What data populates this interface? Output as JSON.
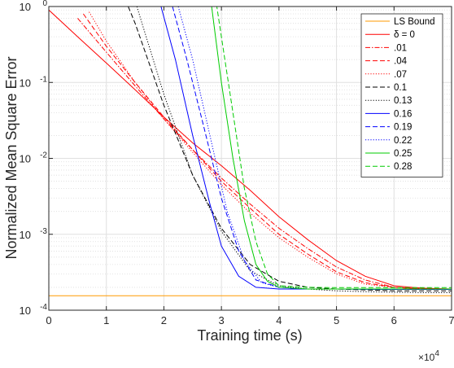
{
  "chart_data": {
    "type": "line",
    "xlabel": "Training time (s)",
    "ylabel": "Normalized Mean Square Error",
    "x_unit": "s",
    "x_multiplier_label": "×10",
    "x_multiplier_exponent": "4",
    "xlim": [
      0,
      70000
    ],
    "ylim": [
      0.0001,
      1
    ],
    "y_scale": "log",
    "grid": true,
    "legend_placement": "top-right",
    "x_ticks": [
      {
        "value": 0,
        "label": "0"
      },
      {
        "value": 10000,
        "label": "1"
      },
      {
        "value": 20000,
        "label": "2"
      },
      {
        "value": 30000,
        "label": "3"
      },
      {
        "value": 40000,
        "label": "4"
      },
      {
        "value": 50000,
        "label": "5"
      },
      {
        "value": 60000,
        "label": "6"
      },
      {
        "value": 70000,
        "label": "7"
      }
    ],
    "y_ticks": [
      {
        "value": 0.0001,
        "base": "10",
        "exp": "-4"
      },
      {
        "value": 0.001,
        "base": "10",
        "exp": "-3"
      },
      {
        "value": 0.01,
        "base": "10",
        "exp": "-2"
      },
      {
        "value": 0.1,
        "base": "10",
        "exp": "-1"
      },
      {
        "value": 1,
        "base": "10",
        "exp": "0"
      }
    ],
    "series": [
      {
        "name": "LS Bound",
        "color": "#ff9900",
        "dash": "solid",
        "x": [
          0,
          70000
        ],
        "y": [
          0.000155,
          0.000155
        ]
      },
      {
        "name": "δ = 0",
        "color": "#ff0000",
        "dash": "solid",
        "x": [
          0,
          5000,
          10000,
          15000,
          20000,
          25000,
          30000,
          35000,
          40000,
          45000,
          50000,
          55000,
          60000,
          65000,
          70000
        ],
        "y": [
          0.9,
          0.4,
          0.18,
          0.08,
          0.035,
          0.016,
          0.008,
          0.0038,
          0.0017,
          0.00085,
          0.00045,
          0.00028,
          0.00021,
          0.000195,
          0.00019
        ]
      },
      {
        "name": ".01",
        "color": "#ff0000",
        "dash": "dashdot",
        "x": [
          5000,
          10000,
          15000,
          20000,
          25000,
          30000,
          35000,
          40000,
          45000,
          50000,
          55000,
          60000,
          65000,
          70000
        ],
        "y": [
          0.7,
          0.25,
          0.09,
          0.033,
          0.013,
          0.0055,
          0.0025,
          0.0012,
          0.00065,
          0.00037,
          0.00025,
          0.0002,
          0.00019,
          0.00019
        ]
      },
      {
        "name": ".04",
        "color": "#ff0000",
        "dash": "dashed",
        "x": [
          6000,
          10000,
          15000,
          20000,
          25000,
          30000,
          35000,
          40000,
          45000,
          50000,
          55000,
          60000,
          65000,
          70000
        ],
        "y": [
          0.8,
          0.3,
          0.1,
          0.035,
          0.013,
          0.005,
          0.0022,
          0.001,
          0.00055,
          0.00032,
          0.00023,
          0.0002,
          0.00019,
          0.00019
        ]
      },
      {
        "name": ".07",
        "color": "#ff0000",
        "dash": "dotted",
        "x": [
          7000,
          10000,
          15000,
          20000,
          25000,
          30000,
          35000,
          40000,
          45000,
          50000,
          55000,
          60000,
          65000,
          70000
        ],
        "y": [
          0.85,
          0.35,
          0.1,
          0.033,
          0.012,
          0.0045,
          0.0019,
          0.0009,
          0.0005,
          0.0003,
          0.00022,
          0.0002,
          0.00019,
          0.00019
        ]
      },
      {
        "name": "0.1",
        "color": "#000000",
        "dash": "dashed",
        "x": [
          13800,
          15000,
          20000,
          25000,
          30000,
          35000,
          40000,
          45000,
          50000,
          55000,
          60000,
          65000,
          70000
        ],
        "y": [
          1,
          0.6,
          0.05,
          0.006,
          0.0012,
          0.0004,
          0.00024,
          0.0002,
          0.00019,
          0.000185,
          0.00018,
          0.00018,
          0.00018
        ]
      },
      {
        "name": "0.13",
        "color": "#000000",
        "dash": "dotted",
        "x": [
          15300,
          20000,
          25000,
          30000,
          35000,
          40000,
          45000,
          50000,
          55000,
          60000,
          65000,
          70000
        ],
        "y": [
          1,
          0.07,
          0.006,
          0.0011,
          0.00033,
          0.00021,
          0.00019,
          0.00018,
          0.000175,
          0.000172,
          0.00017,
          0.00017
        ]
      },
      {
        "name": "0.16",
        "color": "#0000ff",
        "dash": "solid",
        "x": [
          19500,
          22000,
          25000,
          28000,
          30000,
          33000,
          36000,
          40000,
          45000,
          50000,
          55000,
          60000,
          65000,
          70000
        ],
        "y": [
          1,
          0.2,
          0.02,
          0.0025,
          0.0007,
          0.00028,
          0.0002,
          0.00019,
          0.00019,
          0.00019,
          0.000188,
          0.000188,
          0.000188,
          0.000188
        ]
      },
      {
        "name": "0.19",
        "color": "#0000ff",
        "dash": "dashed",
        "x": [
          21500,
          24000,
          27000,
          30000,
          33000,
          36000,
          40000,
          45000,
          50000,
          55000,
          60000,
          65000,
          70000
        ],
        "y": [
          1,
          0.2,
          0.025,
          0.003,
          0.0006,
          0.00025,
          0.0002,
          0.00019,
          0.00019,
          0.00019,
          0.000188,
          0.000188,
          0.000188
        ]
      },
      {
        "name": "0.22",
        "color": "#0000ff",
        "dash": "dotted",
        "x": [
          22500,
          25000,
          28000,
          31000,
          34000,
          37000,
          40000,
          45000,
          50000,
          55000,
          60000,
          65000,
          70000
        ],
        "y": [
          1,
          0.2,
          0.02,
          0.002,
          0.00045,
          0.00023,
          0.0002,
          0.00019,
          0.00019,
          0.00019,
          0.000188,
          0.000188,
          0.000188
        ]
      },
      {
        "name": "0.25",
        "color": "#00cc00",
        "dash": "solid",
        "x": [
          28300,
          30000,
          32000,
          34000,
          36000,
          38000,
          40000,
          45000,
          50000,
          55000,
          60000,
          65000,
          70000
        ],
        "y": [
          1,
          0.1,
          0.01,
          0.0015,
          0.0004,
          0.00024,
          0.0002,
          0.00019,
          0.00019,
          0.00019,
          0.00019,
          0.00019,
          0.00019
        ]
      },
      {
        "name": "0.28",
        "color": "#00cc00",
        "dash": "dashed",
        "x": [
          28000,
          30000,
          32000,
          34000,
          36000,
          38000,
          40000,
          45000,
          50000,
          55000,
          60000,
          65000,
          70000
        ],
        "y": [
          4,
          0.4,
          0.04,
          0.004,
          0.0008,
          0.0003,
          0.00021,
          0.0002,
          0.000198,
          0.000198,
          0.000198,
          0.000198,
          0.000198
        ]
      }
    ]
  }
}
